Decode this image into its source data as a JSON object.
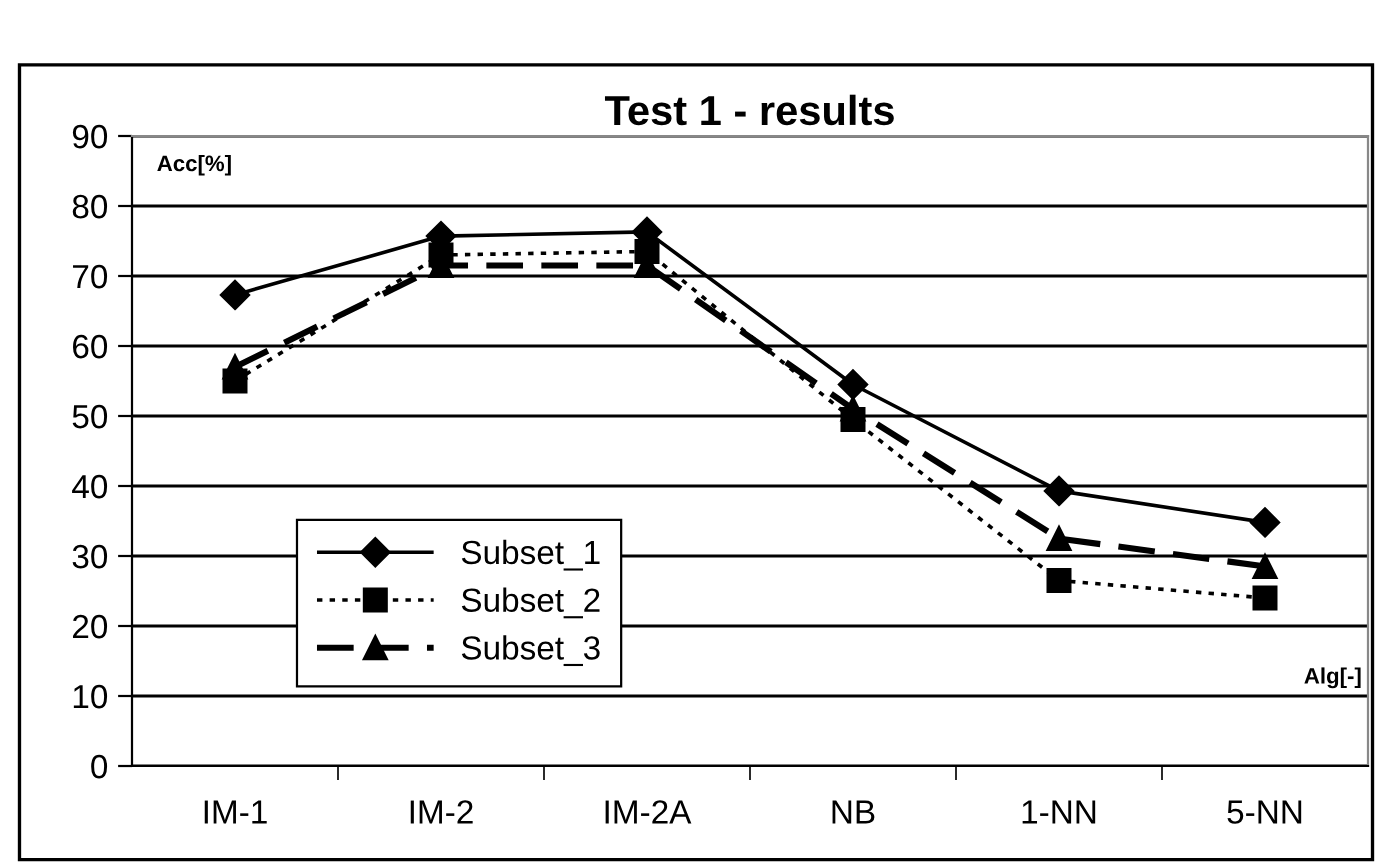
{
  "chart_data": {
    "type": "line",
    "title": "Test 1 - results",
    "xlabel": "Alg[-]",
    "ylabel": "Acc[%]",
    "categories": [
      "IM-1",
      "IM-2",
      "IM-2A",
      "NB",
      "1-NN",
      "5-NN"
    ],
    "series": [
      {
        "name": "Subset_1",
        "color": "#000000",
        "marker": "diamond",
        "line_style": "solid",
        "values": [
          67.3,
          75.7,
          76.3,
          54.5,
          39.3,
          34.8
        ]
      },
      {
        "name": "Subset_2",
        "color": "#000000",
        "marker": "square",
        "line_style": "dotted",
        "values": [
          55,
          73,
          73.5,
          49.5,
          26.5,
          24
        ]
      },
      {
        "name": "Subset_3",
        "color": "#000000",
        "marker": "triangle",
        "line_style": "dashed",
        "values": [
          57,
          71.5,
          71.5,
          51,
          32.5,
          28.5
        ]
      }
    ],
    "ylim": [
      0,
      90
    ],
    "yticks": [
      0,
      10,
      20,
      30,
      40,
      50,
      60,
      70,
      80,
      90
    ],
    "grid": "y",
    "legend": "bottom left"
  }
}
